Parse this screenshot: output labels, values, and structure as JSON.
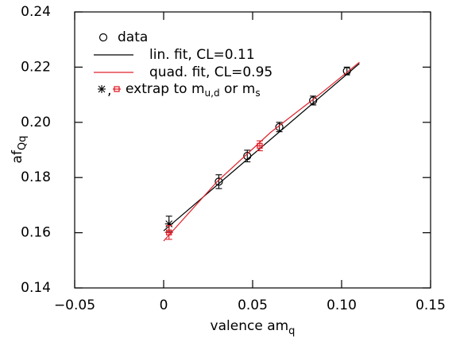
{
  "chart_data": {
    "type": "scatter",
    "xlabel": [
      "valence am",
      "q"
    ],
    "ylabel": [
      "af",
      "Qq"
    ],
    "xlim": [
      -0.05,
      0.15
    ],
    "ylim": [
      0.14,
      0.24
    ],
    "xticks": [
      {
        "value": -0.05,
        "label": "−0.05"
      },
      0,
      0.05,
      {
        "value": 0.1,
        "label": "0.10"
      },
      0.15
    ],
    "yticks": [
      0.14,
      0.16,
      0.18,
      {
        "value": 0.2,
        "label": "0.20"
      },
      0.22,
      0.24
    ],
    "series": [
      {
        "name": "data",
        "color": "#000000",
        "marker": "circle",
        "x": [
          0.031,
          0.047,
          0.065,
          0.084,
          0.103
        ],
        "values": [
          0.1785,
          0.1878,
          0.1983,
          0.2079,
          0.2186
        ],
        "errors": [
          0.0025,
          0.0021,
          0.0017,
          0.0016,
          0.0014
        ]
      },
      {
        "name": "lin. fit, CL=0.11",
        "color": "#000000",
        "marker": "line",
        "x": [
          0,
          0.11
        ],
        "values": [
          0.1607,
          0.2213
        ]
      },
      {
        "name": "quad. fit, CL=0.95",
        "color": "#e0202a",
        "marker": "line",
        "x": [
          0,
          0.03,
          0.06,
          0.09,
          0.11
        ],
        "values": [
          0.157,
          0.1785,
          0.1963,
          0.2113,
          0.2218
        ]
      },
      {
        "color": "#000000",
        "marker": "star",
        "x": [
          0.003
        ],
        "values": [
          0.1632
        ],
        "errors": [
          0.0028
        ]
      },
      {
        "color": "#e0202a",
        "marker": "plus",
        "x": [
          0.003,
          0.054
        ],
        "values": [
          0.1601,
          0.1915
        ],
        "errors": [
          0.0025,
          0.0018
        ]
      }
    ],
    "extrap_separator": ",",
    "extrap_label": [
      "extrap to m",
      "u,d",
      " or m",
      "s"
    ]
  }
}
